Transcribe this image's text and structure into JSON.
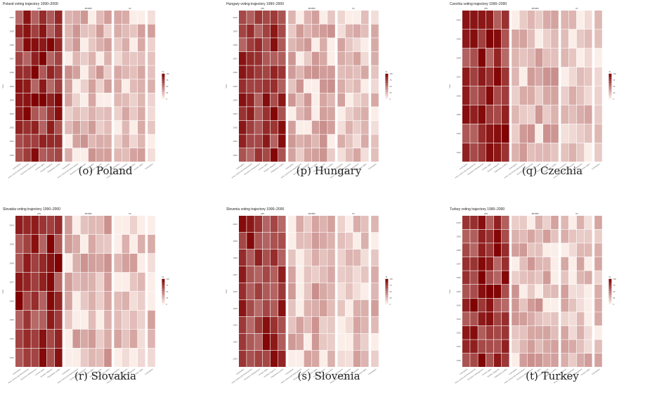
{
  "palette": {
    "low": "#fbeee9",
    "high": "#7f0000"
  },
  "chart_data": [
    {
      "type": "heatmap",
      "caption": "(o) Poland",
      "title": "Poland voting trajectory 1990–2000",
      "ylabel": "Year",
      "legend_title": "%",
      "legend_ticks": [
        "100",
        "75",
        "50",
        "25",
        "0"
      ],
      "groups": [
        {
          "label": "yes",
          "count": 6
        },
        {
          "label": "abstain",
          "count": 6
        },
        {
          "label": "no",
          "count": 4
        },
        {
          "label": "",
          "count": 1
        }
      ],
      "rows": [
        "2000",
        "1999",
        "1998",
        "1997",
        "1996",
        "1995",
        "1994",
        "1993",
        "1992",
        "1991",
        "1990"
      ],
      "x_tick_labels": [
        "Colonialism",
        "Arms control and disarmament",
        "Economic development",
        "Human rights",
        "Nuclear weapons",
        "Palestinian conflict"
      ],
      "value_levels": [
        0,
        10,
        20,
        30,
        40,
        50,
        60,
        70,
        80,
        90,
        100
      ]
    },
    {
      "type": "heatmap",
      "caption": "(p) Hungary",
      "title": "Hungary voting trajectory 1990–2000",
      "ylabel": "Year",
      "legend_title": "%",
      "legend_ticks": [
        "100",
        "75",
        "50",
        "25",
        "0"
      ],
      "groups": [
        {
          "label": "yes",
          "count": 6
        },
        {
          "label": "abstain",
          "count": 6
        },
        {
          "label": "no",
          "count": 4
        },
        {
          "label": "",
          "count": 1
        }
      ],
      "rows": [
        "2000",
        "1999",
        "1998",
        "1997",
        "1996",
        "1995",
        "1994",
        "1993",
        "1992",
        "1991",
        "1990"
      ],
      "x_tick_labels": [
        "Colonialism",
        "Arms control and disarmament",
        "Economic development",
        "Human rights",
        "Nuclear weapons",
        "Palestinian conflict"
      ],
      "value_levels": [
        0,
        10,
        20,
        30,
        40,
        50,
        60,
        70,
        80,
        90,
        100
      ]
    },
    {
      "type": "heatmap",
      "caption": "(q) Czechia",
      "title": "Czechia voting trajectory 1990–2000",
      "ylabel": "Year",
      "legend_title": "%",
      "legend_ticks": [
        "100",
        "75",
        "50",
        "25",
        "0"
      ],
      "groups": [
        {
          "label": "yes",
          "count": 6
        },
        {
          "label": "abstain",
          "count": 6
        },
        {
          "label": "no",
          "count": 4
        },
        {
          "label": "",
          "count": 1
        }
      ],
      "rows": [
        "2000",
        "1999",
        "1998",
        "1997",
        "1996",
        "1995",
        "1994",
        "1993"
      ],
      "x_tick_labels": [
        "Colonialism",
        "Arms control and disarmament",
        "Economic development",
        "Human rights",
        "Nuclear weapons",
        "Palestinian conflict"
      ],
      "value_levels": [
        0,
        10,
        20,
        30,
        40,
        50,
        60,
        70,
        80,
        90,
        100
      ]
    },
    {
      "type": "heatmap",
      "caption": "(r) Slovakia",
      "title": "Slovakia voting trajectory 1990–2000",
      "ylabel": "Year",
      "legend_title": "%",
      "legend_ticks": [
        "100",
        "75",
        "50",
        "25",
        "0"
      ],
      "groups": [
        {
          "label": "yes",
          "count": 6
        },
        {
          "label": "abstain",
          "count": 6
        },
        {
          "label": "no",
          "count": 4
        },
        {
          "label": "",
          "count": 1
        }
      ],
      "rows": [
        "2000",
        "1999",
        "1998",
        "1997",
        "1996",
        "1995",
        "1994",
        "1993"
      ],
      "x_tick_labels": [
        "Colonialism",
        "Arms control and disarmament",
        "Economic development",
        "Human rights",
        "Nuclear weapons",
        "Palestinian conflict"
      ],
      "value_levels": [
        0,
        10,
        20,
        30,
        40,
        50,
        60,
        70,
        80,
        90,
        100
      ]
    },
    {
      "type": "heatmap",
      "caption": "(s) Slovenia",
      "title": "Slovenia voting trajectory 1990–2000",
      "ylabel": "Year",
      "legend_title": "%",
      "legend_ticks": [
        "100",
        "75",
        "50",
        "25",
        "0"
      ],
      "groups": [
        {
          "label": "yes",
          "count": 6
        },
        {
          "label": "abstain",
          "count": 6
        },
        {
          "label": "no",
          "count": 4
        },
        {
          "label": "",
          "count": 1
        }
      ],
      "rows": [
        "2000",
        "1999",
        "1998",
        "1997",
        "1996",
        "1995",
        "1994",
        "1993",
        "1992"
      ],
      "x_tick_labels": [
        "Colonialism",
        "Arms control and disarmament",
        "Economic development",
        "Human rights",
        "Nuclear weapons",
        "Palestinian conflict"
      ],
      "value_levels": [
        0,
        10,
        20,
        30,
        40,
        50,
        60,
        70,
        80,
        90,
        100
      ]
    },
    {
      "type": "heatmap",
      "caption": "(t) Turkey",
      "title": "Turkey voting trajectory 1990–2000",
      "ylabel": "Year",
      "legend_title": "%",
      "legend_ticks": [
        "100",
        "75",
        "50",
        "25",
        "0"
      ],
      "groups": [
        {
          "label": "yes",
          "count": 6
        },
        {
          "label": "abstain",
          "count": 6
        },
        {
          "label": "no",
          "count": 4
        },
        {
          "label": "",
          "count": 1
        }
      ],
      "rows": [
        "2000",
        "1999",
        "1998",
        "1997",
        "1996",
        "1995",
        "1994",
        "1993",
        "1992",
        "1991",
        "1990"
      ],
      "x_tick_labels": [
        "Colonialism",
        "Arms control and disarmament",
        "Economic development",
        "Human rights",
        "Nuclear weapons",
        "Palestinian conflict"
      ],
      "value_levels": [
        0,
        10,
        20,
        30,
        40,
        50,
        60,
        70,
        80,
        90,
        100
      ]
    }
  ]
}
